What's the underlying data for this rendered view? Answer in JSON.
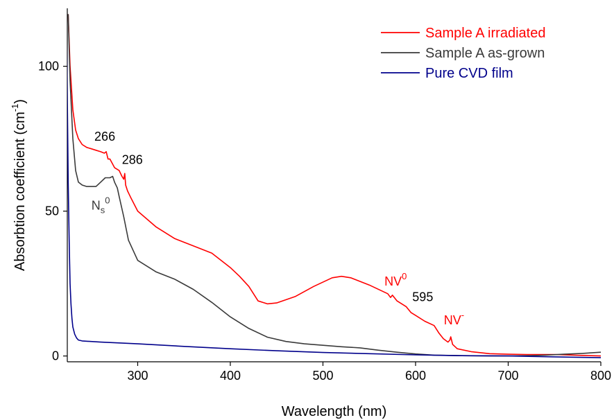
{
  "chart_data": {
    "type": "line",
    "xlabel": "Wavelength (nm)",
    "ylabel": "Absorbtion coefficient (cm",
    "ylabel_sup": "-1",
    "ylabel_close": ")",
    "xlim": [
      224,
      800
    ],
    "ylim": [
      -2,
      120
    ],
    "xticks": [
      300,
      400,
      500,
      600,
      700,
      800
    ],
    "xtick_labels": [
      "300",
      "400",
      "500",
      "600",
      "700",
      "800"
    ],
    "yticks": [
      0,
      50,
      100
    ],
    "ytick_labels": [
      "0",
      "50",
      "100"
    ],
    "grid": false,
    "legend_position": "top-right",
    "series": [
      {
        "name": "Sample A irradiated",
        "color": "#ff0000",
        "x": [
          225,
          227,
          230,
          233,
          236,
          240,
          245,
          250,
          255,
          260,
          264,
          266,
          268,
          270,
          275,
          280,
          283,
          285,
          286,
          287,
          289,
          292,
          300,
          320,
          340,
          360,
          380,
          400,
          410,
          420,
          430,
          440,
          450,
          470,
          490,
          510,
          520,
          530,
          550,
          570,
          573,
          575,
          580,
          590,
          595,
          600,
          610,
          620,
          625,
          630,
          635,
          637,
          638,
          640,
          645,
          660,
          680,
          700,
          720,
          750,
          780,
          800
        ],
        "y": [
          118,
          100,
          85,
          78,
          75,
          73,
          72,
          71.5,
          71,
          70.5,
          70,
          70.5,
          68,
          68,
          65,
          64,
          62,
          61,
          63,
          59,
          57,
          55,
          50,
          44.5,
          40.5,
          38,
          35.5,
          30.5,
          27.5,
          24,
          19,
          18,
          18.3,
          20.5,
          24,
          27,
          27.5,
          27,
          24.5,
          21.5,
          20.2,
          21,
          19,
          17,
          15,
          14,
          12,
          10.5,
          8,
          6,
          4.8,
          5.5,
          6.6,
          4,
          2.5,
          1.5,
          0.8,
          0.6,
          0.5,
          0.5,
          0.2,
          0
        ]
      },
      {
        "name": "Sample A as-grown",
        "color": "#3a3a3a",
        "x": [
          225,
          227,
          230,
          233,
          236,
          240,
          245,
          250,
          255,
          260,
          265,
          270,
          273,
          275,
          278,
          280,
          285,
          290,
          300,
          320,
          340,
          360,
          380,
          400,
          420,
          440,
          460,
          480,
          500,
          520,
          540,
          560,
          580,
          600,
          620,
          650,
          680,
          700,
          720,
          740,
          760,
          780,
          800
        ],
        "y": [
          118,
          95,
          75,
          64,
          60,
          59,
          58.5,
          58.5,
          58.5,
          60,
          61.5,
          61.5,
          62,
          60,
          58,
          55,
          48,
          40,
          33,
          29,
          26.5,
          23,
          18.5,
          13.5,
          9.5,
          6.5,
          5,
          4.2,
          3.7,
          3.2,
          2.8,
          2,
          1.3,
          0.7,
          0.3,
          0.1,
          0,
          0,
          0.1,
          0.3,
          0.6,
          0.9,
          1.3
        ]
      },
      {
        "name": "Pure CVD film",
        "color": "#00008b",
        "x": [
          223,
          224,
          225,
          226,
          227,
          228,
          229,
          230,
          232,
          234,
          236,
          240,
          260,
          300,
          350,
          400,
          450,
          500,
          550,
          600,
          650,
          700,
          750,
          800
        ],
        "y": [
          120,
          90,
          60,
          40,
          25,
          18,
          13,
          10,
          7.5,
          6.2,
          5.5,
          5.2,
          4.8,
          4.2,
          3.3,
          2.5,
          1.8,
          1.2,
          0.8,
          0.4,
          0.1,
          0,
          -0.3,
          -0.6
        ]
      }
    ],
    "annotations": [
      {
        "text": "266",
        "x": 266,
        "y": 71,
        "color": "#000000",
        "anchor": "middle",
        "dx": -2,
        "dy": -14
      },
      {
        "text": "286",
        "x": 286,
        "y": 63,
        "color": "#000000",
        "anchor": "start",
        "dx": -4,
        "dy": -14
      },
      {
        "text": "N",
        "sub": "s",
        "sup": "0",
        "x": 276,
        "y": 50.5,
        "color": "#3a3a3a",
        "anchor": "end",
        "dx": -8,
        "dy": 0
      },
      {
        "text": "NV",
        "sup": "0",
        "x": 574,
        "y": 21.5,
        "color": "#ff0000",
        "anchor": "middle",
        "dx": 6,
        "dy": -12
      },
      {
        "text": "595",
        "x": 595,
        "y": 17,
        "color": "#000000",
        "anchor": "start",
        "dx": 2,
        "dy": -8
      },
      {
        "text": "NV",
        "sup": "-",
        "x": 637,
        "y": 6.6,
        "color": "#ff0000",
        "anchor": "middle",
        "dx": 6,
        "dy": -18
      }
    ]
  }
}
